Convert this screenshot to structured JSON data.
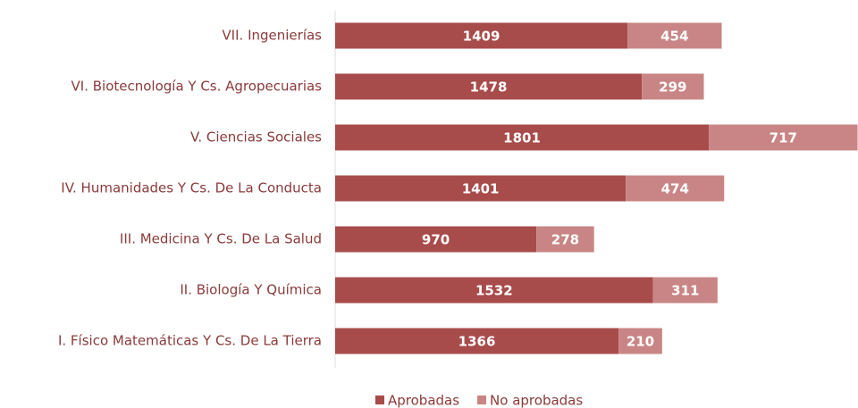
{
  "chart_data": {
    "type": "stacked-bar-horizontal",
    "categories": [
      "VII. Ingenierías",
      "VI. Biotecnología Y Cs. Agropecuarias",
      "V. Ciencias Sociales",
      "IV. Humanidades Y Cs. De La Conducta",
      "III. Medicina Y Cs. De La Salud",
      "II. Biología Y Química",
      "I. Físico Matemáticas Y Cs. De La Tierra"
    ],
    "series": [
      {
        "name": "Aprobadas",
        "color": "#a84b4b",
        "values": [
          1409,
          1478,
          1801,
          1401,
          970,
          1532,
          1366
        ]
      },
      {
        "name": "No aprobadas",
        "color": "#c98585",
        "values": [
          454,
          299,
          717,
          474,
          278,
          311,
          210
        ]
      }
    ],
    "xlim": [
      0,
      2520
    ],
    "legend": "bottom"
  }
}
